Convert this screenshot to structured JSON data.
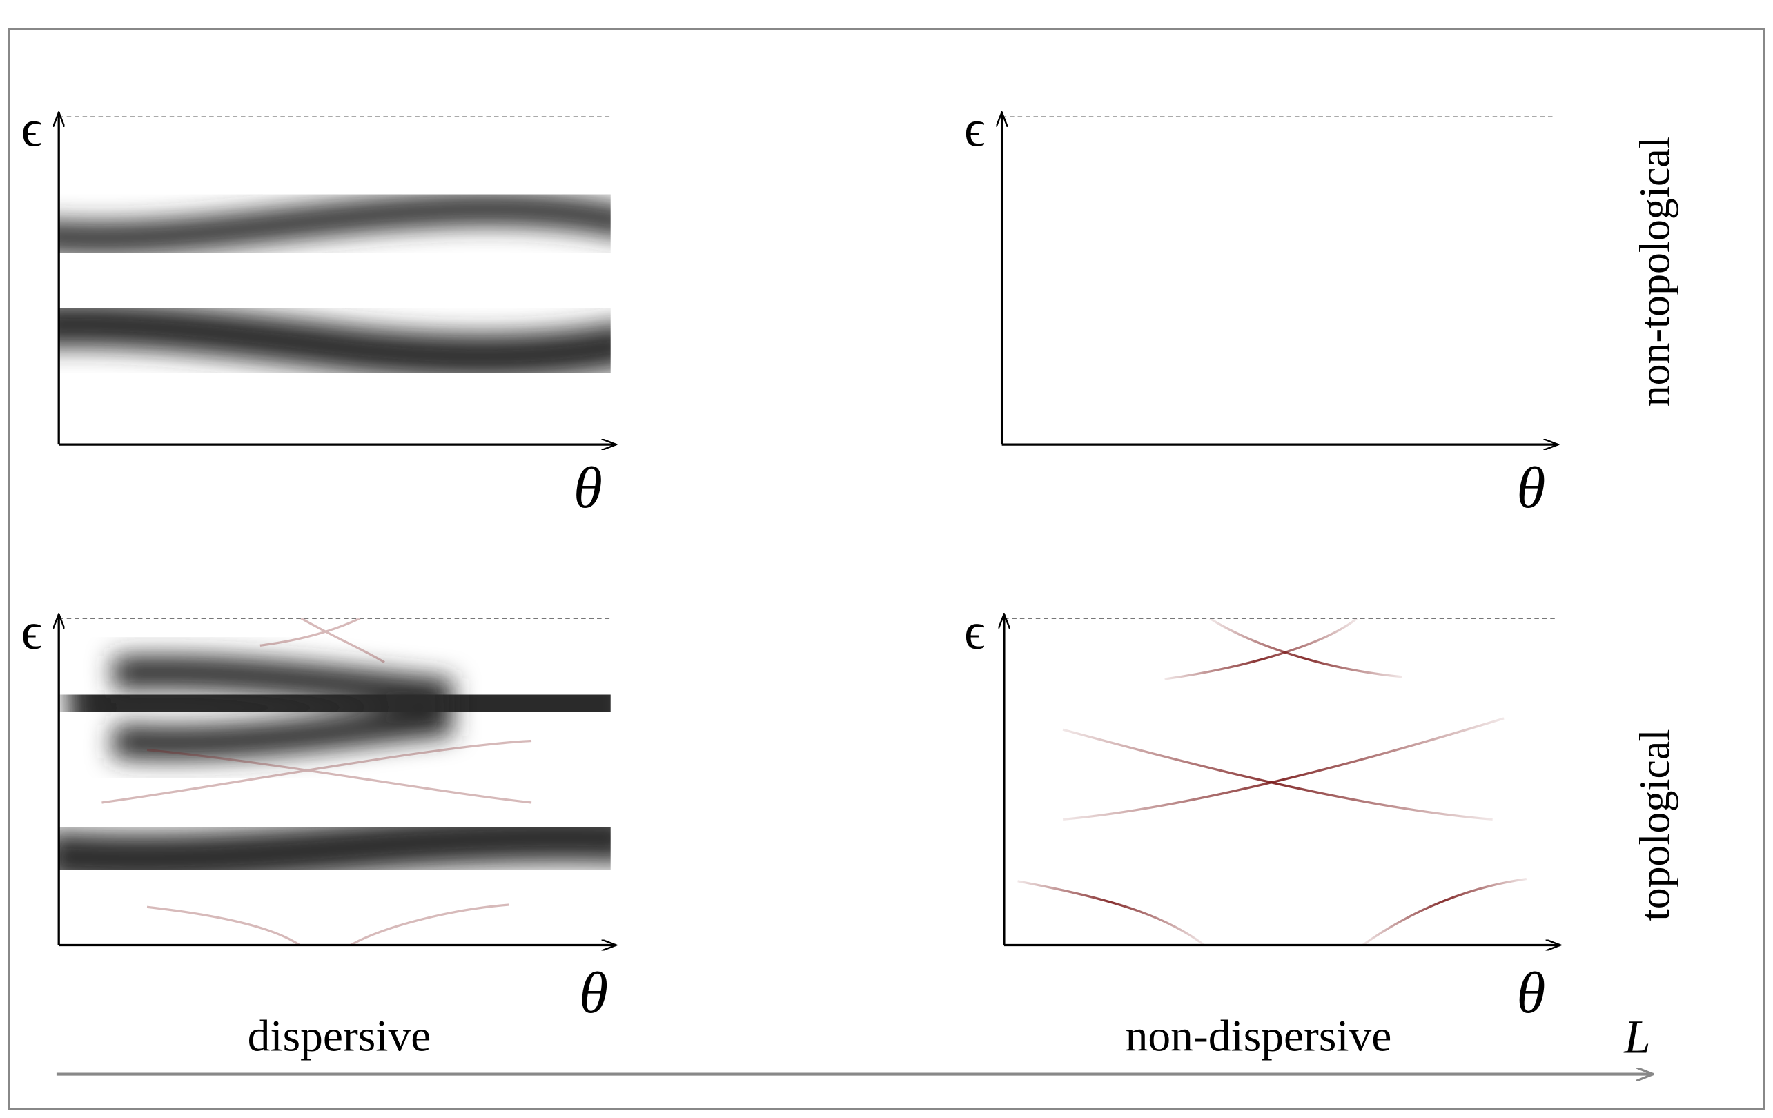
{
  "panels": [
    {
      "y_label": "ϵ",
      "x_label": "θ"
    },
    {
      "y_label": "ϵ",
      "x_label": "θ"
    },
    {
      "y_label": "ϵ",
      "x_label": "θ"
    },
    {
      "y_label": "ϵ",
      "x_label": "θ"
    }
  ],
  "row_labels": [
    "non-topological",
    "topological"
  ],
  "column_labels": [
    "dispersive",
    "non-dispersive"
  ],
  "arrow_label": "L"
}
